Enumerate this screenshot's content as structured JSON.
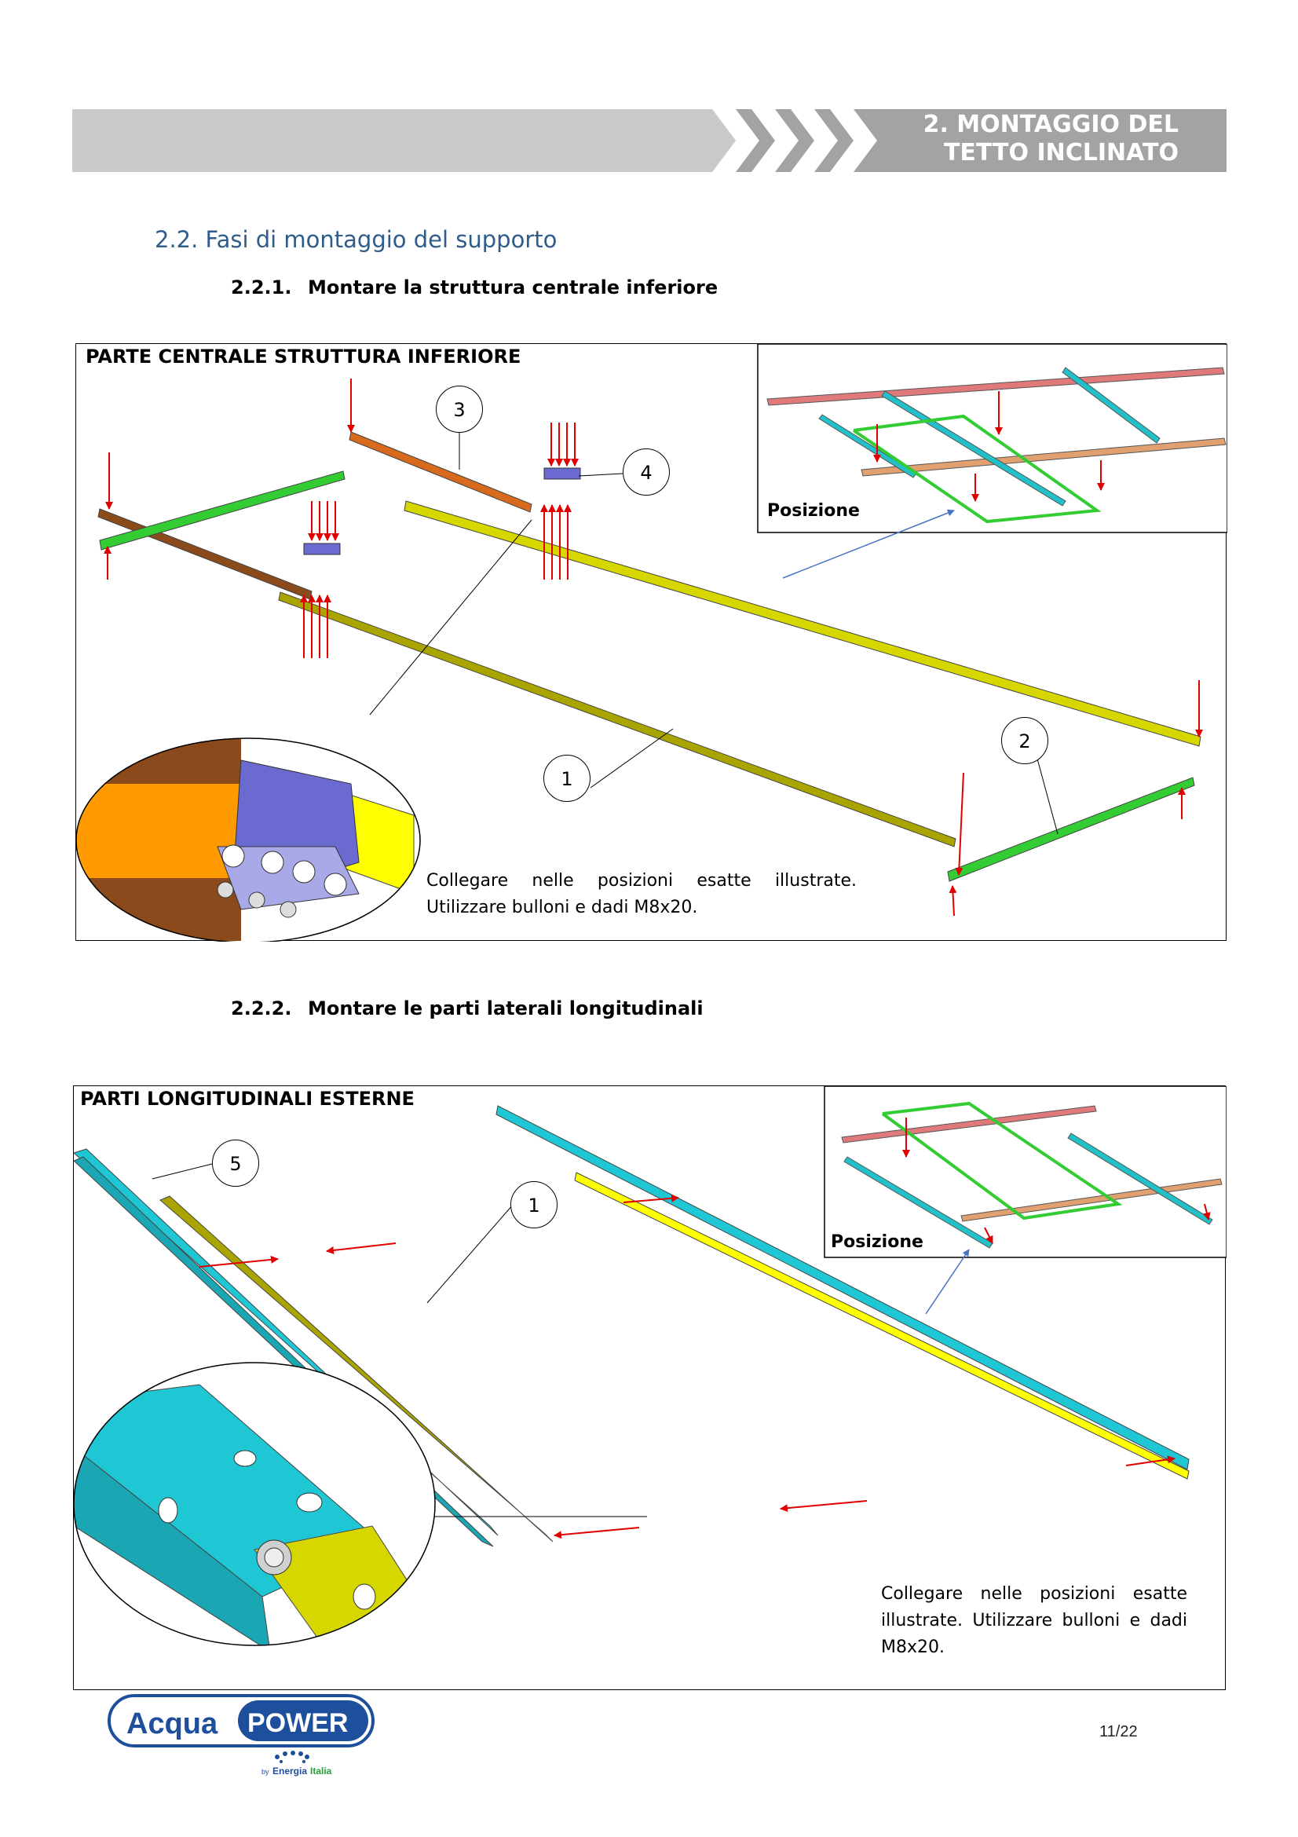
{
  "header": {
    "title_line1": "2. MONTAGGIO DEL",
    "title_line2": "TETTO INCLINATO"
  },
  "section": {
    "heading": "2.2. Fasi di montaggio del supporto"
  },
  "subsection1": {
    "number": "2.2.1.",
    "title": "Montare la struttura centrale inferiore"
  },
  "figure1": {
    "title": "PARTE CENTRALE STRUTTURA INFERIORE",
    "position_label": "Posizione",
    "callouts": [
      "3",
      "4",
      "1",
      "2"
    ],
    "caption_line1": "Collegare nelle posizioni esatte illustrate.",
    "caption_line2": "Utilizzare bulloni e dadi M8x20."
  },
  "subsection2": {
    "number": "2.2.2.",
    "title": "Montare le parti laterali longitudinali"
  },
  "figure2": {
    "title": "PARTI LONGITUDINALI ESTERNE",
    "position_label": "Posizione",
    "callouts": [
      "5",
      "1"
    ],
    "caption": "Collegare nelle posizioni esatte illustrate. Utilizzare bulloni e dadi M8x20."
  },
  "footer": {
    "logo_word1": "Acqua",
    "logo_word2": "POWER",
    "logo_by": "by",
    "logo_brand1": "Energia",
    "logo_brand2": "Italia",
    "page_number": "11/22"
  },
  "colors": {
    "header_gray": "#c8c8c8",
    "header_dark": "#a6a6a6",
    "heading_blue": "#2f5c8a",
    "brand_blue": "#1d4f9c",
    "arrow_red": "#e00000",
    "rail_yellow": "#d7d700",
    "rail_olive": "#a9a400",
    "rail_green": "#33cc33",
    "rail_brown": "#8b4a1b",
    "rail_orange": "#d76a1c",
    "rail_cyan": "#1fc7d4",
    "bracket_purple": "#6a6ad0"
  }
}
